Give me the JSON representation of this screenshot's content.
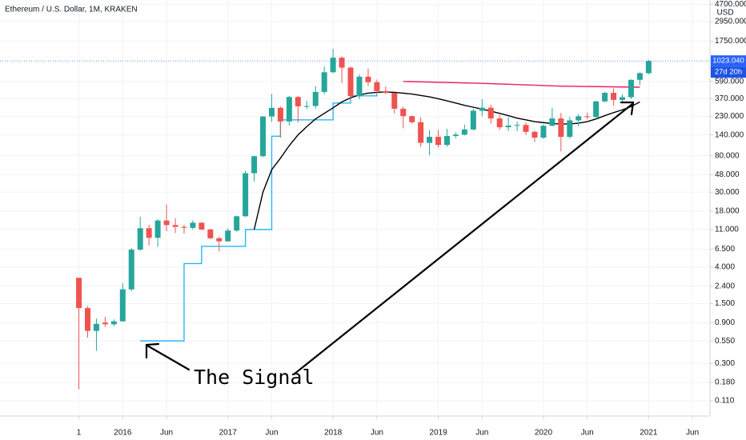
{
  "chart_data": {
    "type": "candlestick",
    "title": "Ethereum / U.S. Dollar, 1M, KRAKEN",
    "axis_unit": "USD",
    "log_scale": true,
    "grid": true,
    "up_color": "#26a69a",
    "down_color": "#ef5350",
    "xlim": [
      "2014-11",
      "2021-08"
    ],
    "ylim": [
      0.073,
      5270
    ],
    "yticks": [
      {
        "value": 4700,
        "label": "4700.000"
      },
      {
        "value": 2950,
        "label": "2950.000"
      },
      {
        "value": 1750,
        "label": "1750.000"
      },
      {
        "value": 590,
        "label": "590.000"
      },
      {
        "value": 370,
        "label": "370.000"
      },
      {
        "value": 230,
        "label": "230.000"
      },
      {
        "value": 140,
        "label": "140.000"
      },
      {
        "value": 80,
        "label": "80.000"
      },
      {
        "value": 48,
        "label": "48.000"
      },
      {
        "value": 30,
        "label": "30.000"
      },
      {
        "value": 18,
        "label": "18.000"
      },
      {
        "value": 11,
        "label": "11.000"
      },
      {
        "value": 6.5,
        "label": "6.500"
      },
      {
        "value": 4,
        "label": "4.000"
      },
      {
        "value": 2.4,
        "label": "2.400"
      },
      {
        "value": 1.5,
        "label": "1.500"
      },
      {
        "value": 0.9,
        "label": "0.900"
      },
      {
        "value": 0.55,
        "label": "0.550"
      },
      {
        "value": 0.3,
        "label": "0.300"
      },
      {
        "value": 0.18,
        "label": "0.180"
      },
      {
        "value": 0.11,
        "label": "0.110"
      }
    ],
    "xticks": [
      {
        "value": "2015-08",
        "label": "1"
      },
      {
        "value": "2016-01",
        "label": "2016"
      },
      {
        "value": "2016-06",
        "label": "Jun"
      },
      {
        "value": "2017-01",
        "label": "2017"
      },
      {
        "value": "2017-06",
        "label": "Jun"
      },
      {
        "value": "2018-01",
        "label": "2018"
      },
      {
        "value": "2018-06",
        "label": "Jun"
      },
      {
        "value": "2019-01",
        "label": "2019"
      },
      {
        "value": "2019-06",
        "label": "Jun"
      },
      {
        "value": "2020-01",
        "label": "2020"
      },
      {
        "value": "2020-06",
        "label": "Jun"
      },
      {
        "value": "2021-01",
        "label": "2021"
      },
      {
        "value": "2021-06",
        "label": "Jun"
      }
    ],
    "x": [
      "2015-08",
      "2015-09",
      "2015-10",
      "2015-11",
      "2015-12",
      "2016-01",
      "2016-02",
      "2016-03",
      "2016-04",
      "2016-05",
      "2016-06",
      "2016-07",
      "2016-08",
      "2016-09",
      "2016-10",
      "2016-11",
      "2016-12",
      "2017-01",
      "2017-02",
      "2017-03",
      "2017-04",
      "2017-05",
      "2017-06",
      "2017-07",
      "2017-08",
      "2017-09",
      "2017-10",
      "2017-11",
      "2017-12",
      "2018-01",
      "2018-02",
      "2018-03",
      "2018-04",
      "2018-05",
      "2018-06",
      "2018-07",
      "2018-08",
      "2018-09",
      "2018-10",
      "2018-11",
      "2018-12",
      "2019-01",
      "2019-02",
      "2019-03",
      "2019-04",
      "2019-05",
      "2019-06",
      "2019-07",
      "2019-08",
      "2019-09",
      "2019-10",
      "2019-11",
      "2019-12",
      "2020-01",
      "2020-02",
      "2020-03",
      "2020-04",
      "2020-05",
      "2020-06",
      "2020-07",
      "2020-08",
      "2020-09",
      "2020-10",
      "2020-11",
      "2020-12",
      "2021-01"
    ],
    "open": [
      3.0,
      1.33,
      0.72,
      0.9,
      0.86,
      0.93,
      2.2,
      6.4,
      11.4,
      8.8,
      14.0,
      12.4,
      11.8,
      11.5,
      13.2,
      11.0,
      8.7,
      8.0,
      10.7,
      15.7,
      50.0,
      79.0,
      230,
      290,
      201,
      388,
      302,
      305,
      445,
      755,
      1118,
      855,
      397,
      670,
      578,
      455,
      433,
      283,
      232,
      197,
      113,
      133,
      107,
      136,
      141,
      162,
      268,
      291,
      218,
      172,
      180,
      183,
      152,
      130,
      179,
      218,
      133,
      207,
      231,
      226,
      345,
      434,
      359,
      386,
      616,
      737
    ],
    "high": [
      3.0,
      1.4,
      1.0,
      1.05,
      0.98,
      2.6,
      6.7,
      15.5,
      12.5,
      14.6,
      21.5,
      14.9,
      12.5,
      14.1,
      13.4,
      11.2,
      9.0,
      11.4,
      16.0,
      53.0,
      80.0,
      232,
      420,
      300,
      400,
      398,
      350,
      520,
      880,
      1420,
      1160,
      880,
      710,
      835,
      620,
      515,
      435,
      300,
      235,
      225,
      160,
      160,
      165,
      150,
      185,
      285,
      365,
      315,
      240,
      225,
      200,
      195,
      157,
      185,
      290,
      253,
      227,
      245,
      255,
      350,
      445,
      490,
      418,
      622,
      755,
      1050
    ],
    "low": [
      0.15,
      0.6,
      0.42,
      0.8,
      0.82,
      0.93,
      2.1,
      6.2,
      7.2,
      6.9,
      10.5,
      10.0,
      9.9,
      11.0,
      10.8,
      8.5,
      6.1,
      7.9,
      10.3,
      15.5,
      40.0,
      77.0,
      200,
      130,
      180,
      195,
      280,
      285,
      420,
      740,
      565,
      365,
      365,
      520,
      410,
      420,
      250,
      167,
      190,
      102,
      81,
      100,
      102,
      128,
      138,
      158,
      232,
      190,
      160,
      155,
      155,
      140,
      116,
      126,
      177,
      90,
      127,
      176,
      214,
      223,
      335,
      308,
      335,
      368,
      534,
      715
    ],
    "close": [
      1.33,
      0.72,
      0.87,
      0.86,
      0.93,
      2.2,
      6.4,
      11.4,
      8.8,
      14.0,
      12.4,
      11.8,
      11.5,
      13.2,
      11.0,
      8.7,
      8.0,
      10.7,
      15.7,
      50.0,
      79.0,
      230,
      290,
      201,
      388,
      302,
      305,
      445,
      755,
      1118,
      855,
      397,
      670,
      578,
      455,
      433,
      283,
      232,
      197,
      113,
      133,
      107,
      136,
      141,
      162,
      268,
      291,
      218,
      172,
      180,
      183,
      152,
      130,
      179,
      218,
      133,
      207,
      231,
      226,
      345,
      434,
      359,
      386,
      616,
      737,
      1023.04
    ],
    "current_price": {
      "value": 1023.04,
      "label": "1023.040"
    },
    "countdown": "27d 20h",
    "price_label_color": "#2962ff",
    "indicators": [
      {
        "color": "#29b6f6",
        "step": true,
        "x": [
          "2016-03",
          "2016-04",
          "2016-05",
          "2016-06",
          "2016-07",
          "2016-08",
          "2016-09",
          "2016-10",
          "2016-11",
          "2016-12",
          "2017-01",
          "2017-02",
          "2017-03",
          "2017-04",
          "2017-05",
          "2017-06",
          "2017-07",
          "2017-08",
          "2017-09",
          "2017-10",
          "2017-11",
          "2017-12",
          "2018-01",
          "2018-02",
          "2018-03",
          "2018-04",
          "2018-05",
          "2018-06"
        ],
        "values": [
          0.55,
          0.55,
          0.55,
          0.55,
          0.55,
          4.4,
          4.4,
          7.0,
          7.0,
          7.0,
          7.0,
          7.0,
          11.0,
          11.0,
          11.0,
          135,
          210,
          210,
          210,
          210,
          210,
          210,
          330,
          330,
          400,
          400,
          400,
          420
        ]
      },
      {
        "color": "#000000",
        "step": false,
        "x": [
          "2017-04",
          "2017-05",
          "2017-06",
          "2017-07",
          "2017-08",
          "2017-09",
          "2017-10",
          "2017-11",
          "2017-12",
          "2018-01",
          "2018-02",
          "2018-03",
          "2018-04",
          "2018-05",
          "2018-06",
          "2018-07",
          "2018-08",
          "2018-09",
          "2018-10",
          "2018-11",
          "2018-12",
          "2019-01",
          "2019-02",
          "2019-03",
          "2019-04",
          "2019-05",
          "2019-06",
          "2019-07",
          "2019-08",
          "2019-09",
          "2019-10",
          "2019-11",
          "2019-12",
          "2020-01",
          "2020-02",
          "2020-03",
          "2020-04",
          "2020-05",
          "2020-06",
          "2020-07",
          "2020-08",
          "2020-09",
          "2020-10",
          "2020-11",
          "2020-12"
        ],
        "values": [
          11,
          30,
          55,
          75,
          105,
          140,
          175,
          215,
          250,
          290,
          340,
          380,
          410,
          430,
          440,
          445,
          440,
          430,
          420,
          405,
          390,
          370,
          350,
          330,
          310,
          295,
          280,
          265,
          250,
          235,
          220,
          210,
          200,
          195,
          190,
          188,
          188,
          192,
          200,
          215,
          235,
          255,
          275,
          300,
          340
        ]
      },
      {
        "color": "#e91e63",
        "step": false,
        "x": [
          "2018-09",
          "2019-06",
          "2020-03",
          "2020-12"
        ],
        "values": [
          590,
          560,
          520,
          505
        ]
      }
    ],
    "annotation": "The Signal"
  }
}
